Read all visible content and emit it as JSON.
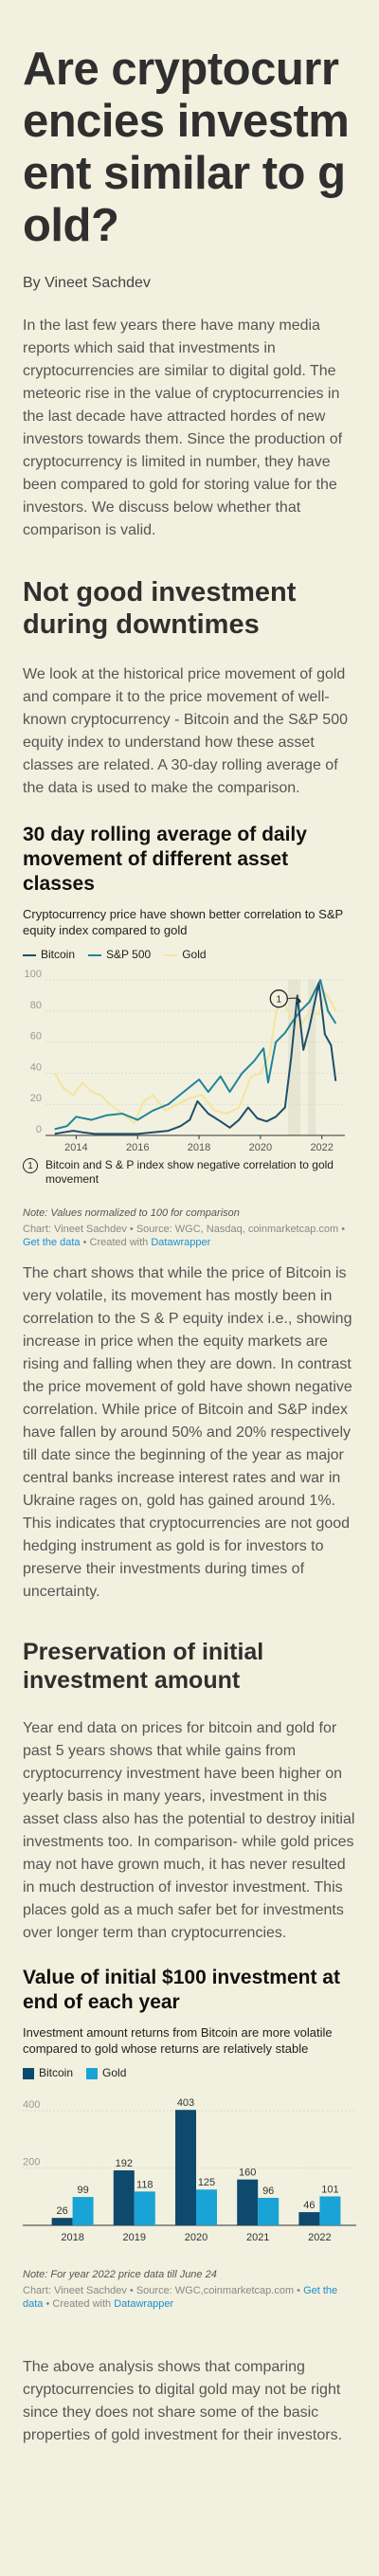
{
  "article": {
    "title": "Are cryptocurrencies investment similar to gold?",
    "byline": "By Vineet Sachdev",
    "intro": "In the last few years there have many media reports which said that investments in cryptocurrencies are similar to digital gold. The meteoric rise in the value of cryptocurrencies in the last decade have attracted hordes of new investors towards them. Since the production of cryptocurrency is limited in number, they have been compared to gold for storing value for the investors. We discuss below whether that comparison is valid.",
    "section1_heading": "Not good investment during downtimes",
    "section1_text": "We look at the historical price movement of gold and compare it to the price movement of well-known cryptocurrency - Bitcoin and the S&P 500 equity index to understand how these asset classes are related. A 30-day rolling average of the data is used to make the comparison.",
    "analysis1": "The chart shows that while the price of Bitcoin is very volatile, its movement has mostly been in correlation to the S & P equity index i.e., showing increase in price when the equity markets are rising and falling when they are down. In contrast the price movement of gold have shown negative correlation. While price of Bitcoin and S&P index have fallen by around 50% and 20% respectively till date since the beginning of the year as major central banks increase interest rates and war in Ukraine rages on, gold has gained around 1%. This indicates that cryptocurrencies are not good hedging instrument as gold is for investors to preserve their investments during times of uncertainty.",
    "section2_heading": "Preservation of initial investment amount",
    "section2_text": "Year end data on prices for bitcoin and gold for past 5 years shows that while gains from cryptocurrency investment have been higher on yearly basis in many years, investment in this asset class also has the potential to destroy initial investments too. In comparison- while gold prices may not have grown much, it has never resulted in much destruction of investor investment. This places gold as a much safer bet for investments over longer term than cryptocurrencies.",
    "conclusion": "The above analysis shows that comparing cryptocurrencies to digital gold may not be right since they does not share some of the basic properties of gold investment for their investors."
  },
  "chart1": {
    "note": "Note: Values normalized to 100 for comparison",
    "credit_prefix": "Chart: Vineet Sachdev • Source: WGC, Nasdaq, coinmarketcap.com •",
    "get_data": "Get the data",
    "created_with": "• Created with",
    "datawrapper": "Datawrapper"
  },
  "chart2": {
    "note": "Note: For year 2022 price data till June 24",
    "credit_prefix": "Chart: Vineet Sachdev • Source: WGC,coinmarketcap.com •",
    "get_data": "Get the data",
    "created_with": "• Created with",
    "datawrapper": "Datawrapper"
  },
  "colors": {
    "bitcoin_line": "#1f4f6b",
    "sp500_line": "#21849b",
    "gold_line": "#f3e59e",
    "bitcoin_bar": "#0e4a6e",
    "gold_bar": "#1aa3d6"
  },
  "chart_data": [
    {
      "type": "line",
      "title": "30 day rolling average of daily movement of different asset classes",
      "subtitle": "Cryptocurrency price have shown better correlation to S&P equity index compared to gold",
      "series": [
        {
          "name": "Bitcoin",
          "x": [
            2013.3,
            2013.6,
            2013.9,
            2014.2,
            2014.6,
            2015,
            2015.5,
            2016,
            2016.5,
            2017,
            2017.4,
            2017.7,
            2017.95,
            2018.3,
            2018.7,
            2019,
            2019.3,
            2019.6,
            2019.9,
            2020.2,
            2020.5,
            2020.8,
            2021.0,
            2021.2,
            2021.4,
            2021.6,
            2021.9,
            2022.1,
            2022.3,
            2022.45
          ],
          "y": [
            1,
            2,
            3,
            2,
            1,
            1,
            1,
            1,
            2,
            3,
            6,
            10,
            22,
            14,
            9,
            5,
            10,
            18,
            11,
            9,
            12,
            18,
            50,
            90,
            55,
            70,
            98,
            65,
            58,
            35
          ]
        },
        {
          "name": "S&P 500",
          "x": [
            2013.3,
            2013.7,
            2014,
            2014.5,
            2015,
            2015.5,
            2016,
            2016.5,
            2017,
            2017.5,
            2018,
            2018.3,
            2018.7,
            2019,
            2019.4,
            2019.8,
            2020.1,
            2020.25,
            2020.5,
            2020.8,
            2021,
            2021.3,
            2021.6,
            2021.95,
            2022.2,
            2022.45
          ],
          "y": [
            4,
            6,
            12,
            10,
            13,
            14,
            10,
            16,
            20,
            28,
            36,
            28,
            38,
            28,
            40,
            48,
            56,
            34,
            60,
            66,
            72,
            80,
            86,
            100,
            80,
            72
          ]
        },
        {
          "name": "Gold",
          "x": [
            2013.3,
            2013.6,
            2013.9,
            2014.2,
            2014.5,
            2014.8,
            2015.1,
            2015.5,
            2015.9,
            2016.2,
            2016.5,
            2016.9,
            2017.3,
            2017.7,
            2018.1,
            2018.5,
            2018.9,
            2019.3,
            2019.7,
            2020.0,
            2020.3,
            2020.6,
            2020.8,
            2021,
            2021.3,
            2021.6,
            2021.9,
            2022.1,
            2022.3,
            2022.45
          ],
          "y": [
            40,
            30,
            26,
            34,
            28,
            26,
            20,
            14,
            8,
            22,
            26,
            16,
            20,
            24,
            26,
            16,
            14,
            18,
            38,
            40,
            52,
            90,
            84,
            76,
            70,
            80,
            78,
            92,
            86,
            80
          ]
        }
      ],
      "x_ticks": [
        "2014",
        "2016",
        "2018",
        "2020",
        "2022"
      ],
      "y_ticks": [
        "0",
        "20",
        "40",
        "60",
        "80",
        "100"
      ],
      "ylim": [
        0,
        100
      ],
      "annotation": {
        "marker": "1",
        "text": "Bitcoin and S & P index show negative correlation to gold movement"
      }
    },
    {
      "type": "bar",
      "title": "Value of initial $100 investment at end of each year",
      "subtitle": "Investment amount returns from Bitcoin are more volatile compared to gold whose returns are relatively stable",
      "categories": [
        "2018",
        "2019",
        "2020",
        "2021",
        "2022"
      ],
      "series": [
        {
          "name": "Bitcoin",
          "values": [
            26,
            192,
            403,
            160,
            46
          ]
        },
        {
          "name": "Gold",
          "values": [
            99,
            118,
            125,
            96,
            101
          ]
        }
      ],
      "y_ticks": [
        "200",
        "400"
      ],
      "ylim": [
        0,
        450
      ]
    }
  ]
}
